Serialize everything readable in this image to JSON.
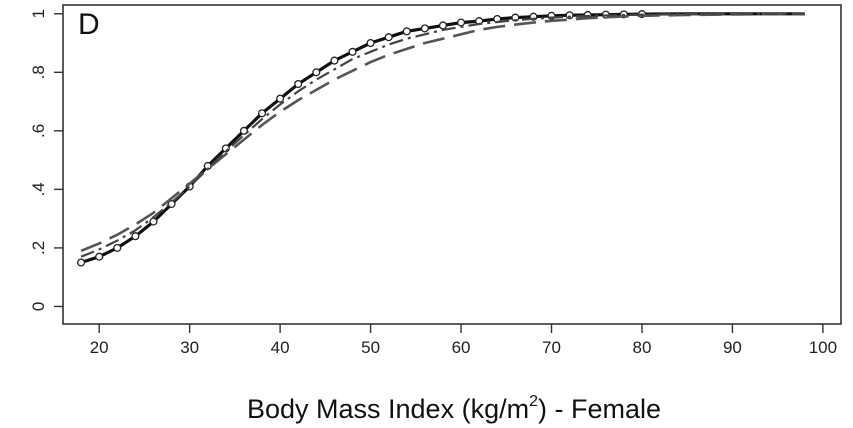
{
  "chart_data": {
    "type": "line",
    "panel_label": "D",
    "xlabel": {
      "main": "Body Mass Index (kg/m",
      "superscript": "2",
      "suffix": ") - Female"
    },
    "ylabel": "",
    "xlim": [
      16,
      102
    ],
    "ylim": [
      0,
      1
    ],
    "x_ticks": [
      20,
      30,
      40,
      50,
      60,
      70,
      80,
      90,
      100
    ],
    "y_ticks": [
      0,
      0.2,
      0.4,
      0.6,
      0.8,
      1.0
    ],
    "y_tick_labels": [
      "0",
      ".2",
      ".4",
      ".6",
      ".8",
      "1"
    ],
    "grid": false,
    "series": [
      {
        "style": "solid",
        "x": [
          18,
          20,
          22,
          24,
          26,
          28,
          30,
          32,
          34,
          36,
          38,
          40,
          42,
          44,
          46,
          48,
          50,
          52,
          54,
          56,
          58,
          60,
          62,
          64,
          66,
          68,
          70,
          72,
          74,
          76,
          78,
          80,
          85,
          90,
          95,
          98
        ],
        "y": [
          0.15,
          0.17,
          0.2,
          0.24,
          0.29,
          0.35,
          0.41,
          0.48,
          0.54,
          0.6,
          0.66,
          0.71,
          0.76,
          0.8,
          0.84,
          0.87,
          0.9,
          0.92,
          0.94,
          0.95,
          0.96,
          0.97,
          0.975,
          0.982,
          0.987,
          0.99,
          0.993,
          0.995,
          0.996,
          0.997,
          0.998,
          0.999,
          1.0,
          1.0,
          1.0,
          1.0
        ]
      },
      {
        "style": "circles",
        "x": [
          18,
          20,
          22,
          24,
          26,
          28,
          30,
          32,
          34,
          36,
          38,
          40,
          42,
          44,
          46,
          48,
          50,
          52,
          54,
          56,
          58,
          60,
          62,
          64,
          66,
          68,
          70,
          72,
          74,
          76,
          78,
          80
        ],
        "y": [
          0.15,
          0.17,
          0.2,
          0.24,
          0.29,
          0.35,
          0.41,
          0.48,
          0.54,
          0.6,
          0.66,
          0.71,
          0.76,
          0.8,
          0.84,
          0.87,
          0.9,
          0.92,
          0.94,
          0.95,
          0.96,
          0.97,
          0.975,
          0.982,
          0.987,
          0.99,
          0.993,
          0.995,
          0.996,
          0.997,
          0.998,
          0.999
        ]
      },
      {
        "style": "dashed",
        "x": [
          18,
          20,
          22,
          24,
          26,
          28,
          30,
          32,
          34,
          36,
          38,
          40,
          42,
          44,
          46,
          48,
          50,
          52,
          54,
          56,
          58,
          60,
          62,
          64,
          66,
          68,
          70,
          72,
          74,
          76,
          78,
          80,
          85,
          90,
          95,
          98
        ],
        "y": [
          0.19,
          0.215,
          0.245,
          0.28,
          0.32,
          0.37,
          0.42,
          0.47,
          0.52,
          0.57,
          0.62,
          0.665,
          0.705,
          0.74,
          0.775,
          0.805,
          0.835,
          0.86,
          0.88,
          0.9,
          0.915,
          0.93,
          0.945,
          0.955,
          0.963,
          0.97,
          0.976,
          0.98,
          0.985,
          0.988,
          0.991,
          0.993,
          0.996,
          0.998,
          0.999,
          1.0
        ]
      },
      {
        "style": "dashdot",
        "x": [
          18,
          20,
          22,
          24,
          26,
          28,
          30,
          32,
          34,
          36,
          38,
          40,
          42,
          44,
          46,
          48,
          50,
          52,
          54,
          56,
          58,
          60,
          62,
          64,
          66,
          68,
          70,
          72,
          74,
          76,
          78,
          80,
          85,
          90,
          95,
          98
        ],
        "y": [
          0.17,
          0.195,
          0.225,
          0.26,
          0.305,
          0.355,
          0.41,
          0.47,
          0.53,
          0.585,
          0.64,
          0.69,
          0.735,
          0.775,
          0.81,
          0.845,
          0.87,
          0.895,
          0.915,
          0.93,
          0.945,
          0.955,
          0.965,
          0.972,
          0.978,
          0.983,
          0.987,
          0.99,
          0.992,
          0.994,
          0.996,
          0.997,
          0.999,
          1.0,
          1.0,
          1.0
        ]
      }
    ]
  }
}
